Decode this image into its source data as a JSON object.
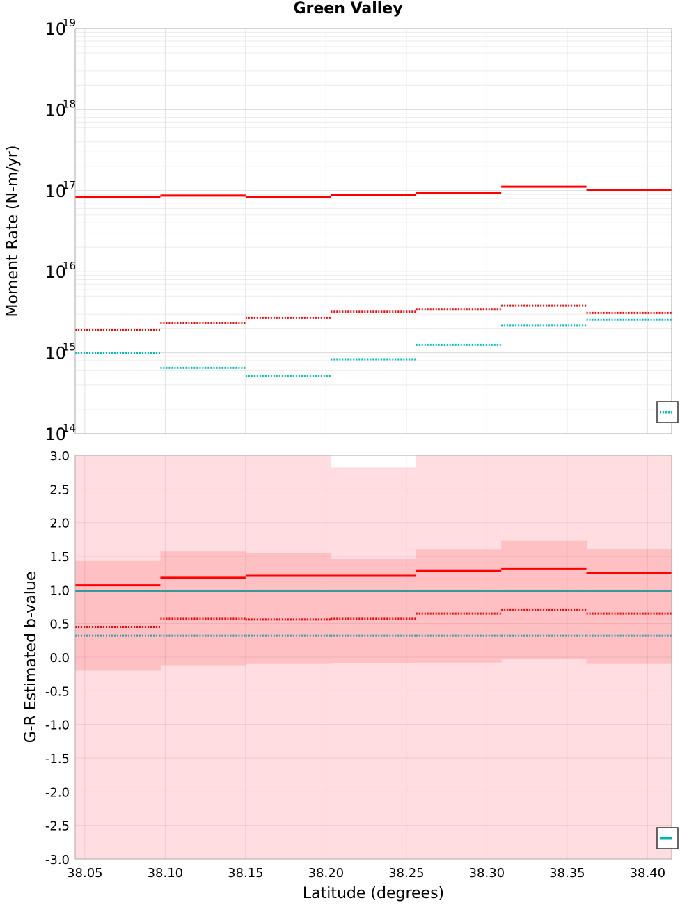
{
  "chart_data": [
    {
      "type": "line",
      "title": "Green Valley",
      "xlabel": "",
      "ylabel": "Moment Rate (N-m/yr)",
      "yscale": "log",
      "ylim": [
        100000000000000.0,
        1e+19
      ],
      "xlim": [
        38.044,
        38.415
      ],
      "grid": true,
      "y_ticks": [
        {
          "base": "10",
          "exp": "14",
          "value": 100000000000000.0
        },
        {
          "base": "10",
          "exp": "15",
          "value": 1000000000000000.0
        },
        {
          "base": "10",
          "exp": "16",
          "value": 1e+16
        },
        {
          "base": "10",
          "exp": "17",
          "value": 1e+17
        },
        {
          "base": "10",
          "exp": "18",
          "value": 1e+18
        },
        {
          "base": "10",
          "exp": "19",
          "value": 1e+19
        }
      ],
      "bins": [
        [
          38.044,
          38.097
        ],
        [
          38.097,
          38.15
        ],
        [
          38.15,
          38.203
        ],
        [
          38.203,
          38.256
        ],
        [
          38.256,
          38.309
        ],
        [
          38.309,
          38.362
        ],
        [
          38.362,
          38.415
        ]
      ],
      "series": [
        {
          "color": "#ff0000",
          "style": "solid",
          "values": [
            8.4e+16,
            8.7e+16,
            8.3e+16,
            8.8e+16,
            9.3e+16,
            1.12e+17,
            1.02e+17
          ]
        },
        {
          "color": "#ff0000",
          "style": "dotted",
          "values": [
            1900000000000000.0,
            2300000000000000.0,
            2700000000000000.0,
            3200000000000000.0,
            3400000000000000.0,
            3800000000000000.0,
            3100000000000000.0
          ]
        },
        {
          "color": "#00bfbf",
          "style": "dotted",
          "values": [
            1000000000000000.0,
            650000000000000.0,
            520000000000000.0,
            830000000000000.0,
            1250000000000000.0,
            2150000000000000.0,
            2550000000000000.0
          ]
        }
      ],
      "legend": "bottom-right"
    },
    {
      "type": "line",
      "title": "",
      "xlabel": "Latitude (degrees)",
      "ylabel": "G-R Estimated b-value",
      "ylim": [
        -3.0,
        3.0
      ],
      "xlim": [
        38.044,
        38.415
      ],
      "grid": true,
      "y_ticks": [
        "-3.0",
        "-2.5",
        "-2.0",
        "-1.5",
        "-1.0",
        "-0.5",
        "0.0",
        "0.5",
        "1.0",
        "1.5",
        "2.0",
        "2.5",
        "3.0"
      ],
      "x_ticks": [
        "38.05",
        "38.10",
        "38.15",
        "38.20",
        "38.25",
        "38.30",
        "38.35",
        "38.40"
      ],
      "x_tick_values": [
        38.05,
        38.1,
        38.15,
        38.2,
        38.25,
        38.3,
        38.35,
        38.4
      ],
      "bins": [
        [
          38.044,
          38.097
        ],
        [
          38.097,
          38.15
        ],
        [
          38.15,
          38.203
        ],
        [
          38.203,
          38.256
        ],
        [
          38.256,
          38.309
        ],
        [
          38.309,
          38.362
        ],
        [
          38.362,
          38.415
        ]
      ],
      "band_outer": {
        "color": "#ffdde0",
        "lower": [
          -3.0,
          -3.0,
          -3.0,
          -3.0,
          -3.0,
          -3.0,
          -3.0
        ],
        "upper": [
          3.0,
          3.0,
          3.0,
          2.82,
          3.0,
          3.0,
          3.0
        ]
      },
      "band_inner": {
        "color": "#ffc0c4",
        "lower": [
          -0.2,
          -0.12,
          -0.1,
          -0.09,
          -0.08,
          -0.03,
          -0.1
        ],
        "upper": [
          1.43,
          1.57,
          1.55,
          1.46,
          1.6,
          1.73,
          1.61
        ]
      },
      "series": [
        {
          "color": "#ff0000",
          "style": "solid",
          "values": [
            1.07,
            1.18,
            1.21,
            1.21,
            1.28,
            1.31,
            1.25
          ]
        },
        {
          "color": "#ff0000",
          "style": "dotted",
          "values": [
            0.45,
            0.57,
            0.56,
            0.57,
            0.65,
            0.7,
            0.65
          ]
        },
        {
          "color": "#339999",
          "style": "solid",
          "values": [
            0.98,
            0.98,
            0.98,
            0.98,
            0.98,
            0.98,
            0.98
          ]
        },
        {
          "color": "#339999",
          "style": "dotted",
          "values": [
            0.32,
            0.32,
            0.32,
            0.32,
            0.32,
            0.32,
            0.32
          ]
        }
      ],
      "legend": "bottom-right"
    }
  ]
}
